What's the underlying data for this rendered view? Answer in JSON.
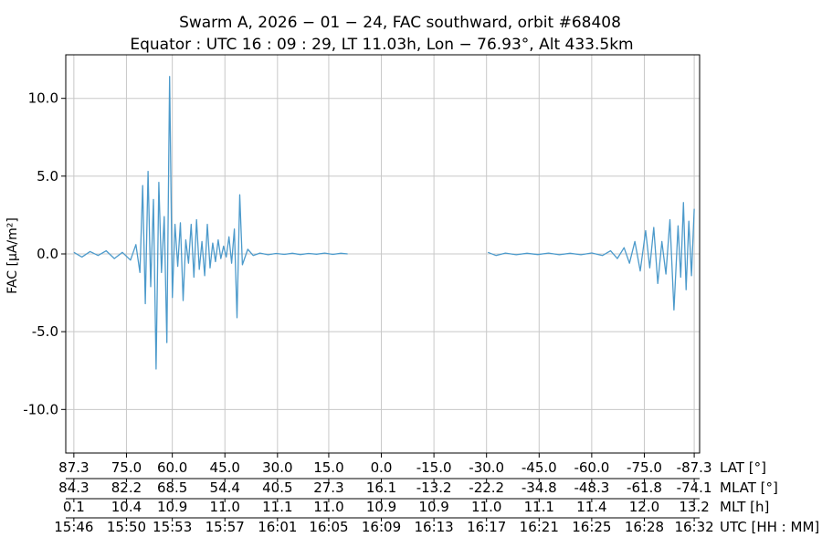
{
  "chart_data": {
    "type": "line",
    "title_line1": "Swarm A,  2026 − 01 − 24,  FAC southward,  orbit #68408",
    "title_line2": "Equator :  UTC 16 : 09 : 29,  LT 11.03h,  Lon  − 76.93°,  Alt 433.5km",
    "ylabel": "FAC [μA/m²]",
    "ylim": [
      -12.8,
      12.8
    ],
    "grid": true,
    "yticks": [
      {
        "value": 10.0,
        "label": "10.0"
      },
      {
        "value": 5.0,
        "label": "5.0"
      },
      {
        "value": 0.0,
        "label": "0.0"
      },
      {
        "value": -5.0,
        "label": "-5.0"
      },
      {
        "value": -10.0,
        "label": "-10.0"
      }
    ],
    "xaxis_rows": [
      {
        "name": "LAT [°]",
        "labels": [
          "87.3",
          "75.0",
          "60.0",
          "45.0",
          "30.0",
          "15.0",
          "0.0",
          "-15.0",
          "-30.0",
          "-45.0",
          "-60.0",
          "-75.0",
          "-87.3"
        ]
      },
      {
        "name": "MLAT [°]",
        "labels": [
          "84.3",
          "82.2",
          "68.5",
          "54.4",
          "40.5",
          "27.3",
          "16.1",
          "-13.2",
          "-22.2",
          "-34.8",
          "-48.3",
          "-61.8",
          "-74.1"
        ]
      },
      {
        "name": "MLT [h]",
        "labels": [
          "0.1",
          "10.4",
          "10.9",
          "11.0",
          "11.1",
          "11.0",
          "10.9",
          "10.9",
          "11.0",
          "11.1",
          "11.4",
          "12.0",
          "13.2"
        ]
      },
      {
        "name": "UTC [HH : MM]",
        "labels": [
          "15:46",
          "15:50",
          "15:53",
          "15:57",
          "16:01",
          "16:05",
          "16:09",
          "16:13",
          "16:17",
          "16:21",
          "16:25",
          "16:28",
          "16:32"
        ]
      }
    ],
    "x_ticks_utc_min": [
      946.0,
      949.9,
      953.3,
      957.2,
      961.1,
      964.9,
      968.8,
      972.7,
      976.6,
      980.5,
      984.4,
      988.3,
      992.0
    ],
    "xlim_utc_min": [
      945.4,
      992.4
    ],
    "series": [
      {
        "color": "#4c9acb",
        "segments": [
          {
            "x": [
              946.0,
              946.6,
              947.2,
              947.8,
              948.4,
              949.0,
              949.6,
              950.2,
              950.6,
              950.9,
              951.1,
              951.3,
              951.5,
              951.7,
              951.9,
              952.1,
              952.3,
              952.5,
              952.7,
              952.9,
              953.1,
              953.3,
              953.5,
              953.7,
              953.9,
              954.1,
              954.3,
              954.5,
              954.7,
              954.9,
              955.1,
              955.3,
              955.5,
              955.7,
              955.9,
              956.1,
              956.3,
              956.5,
              956.7,
              956.9,
              957.1,
              957.3,
              957.5,
              957.7,
              957.9,
              958.1,
              958.3,
              958.5,
              958.9,
              959.3,
              959.8,
              960.4,
              961.0,
              961.6,
              962.2,
              962.8,
              963.4,
              964.0,
              964.6,
              965.2,
              965.8,
              966.3
            ],
            "y": [
              0.1,
              -0.2,
              0.15,
              -0.1,
              0.2,
              -0.3,
              0.1,
              -0.4,
              0.6,
              -1.2,
              4.4,
              -3.2,
              5.3,
              -2.1,
              3.5,
              -7.4,
              4.6,
              -1.2,
              2.4,
              -5.7,
              11.4,
              -2.8,
              1.9,
              -0.8,
              2.0,
              -3.0,
              0.9,
              -0.6,
              1.9,
              -1.5,
              2.2,
              -1.0,
              0.8,
              -1.4,
              1.9,
              -0.9,
              0.7,
              -0.5,
              0.9,
              -0.3,
              0.5,
              -0.2,
              1.1,
              -0.6,
              1.6,
              -4.1,
              3.8,
              -0.7,
              0.3,
              -0.1,
              0.05,
              -0.05,
              0.03,
              -0.03,
              0.04,
              -0.04,
              0.03,
              -0.02,
              0.05,
              -0.03,
              0.04,
              0.0
            ]
          },
          {
            "x": [
              976.7,
              977.3,
              978.0,
              978.8,
              979.6,
              980.4,
              981.2,
              982.0,
              982.8,
              983.6,
              984.4,
              985.2,
              985.8,
              986.3,
              986.8,
              987.2,
              987.6,
              988.0,
              988.4,
              988.7,
              989.0,
              989.3,
              989.6,
              989.9,
              990.2,
              990.5,
              990.8,
              991.0,
              991.2,
              991.4,
              991.6,
              991.8,
              992.0
            ],
            "y": [
              0.1,
              -0.1,
              0.05,
              -0.05,
              0.04,
              -0.04,
              0.05,
              -0.05,
              0.04,
              -0.05,
              0.06,
              -0.1,
              0.2,
              -0.3,
              0.4,
              -0.6,
              0.8,
              -1.1,
              1.5,
              -0.9,
              1.7,
              -1.9,
              0.8,
              -1.3,
              2.2,
              -3.6,
              1.8,
              -1.5,
              3.3,
              -2.3,
              2.1,
              -1.4,
              2.9
            ]
          }
        ]
      }
    ]
  }
}
